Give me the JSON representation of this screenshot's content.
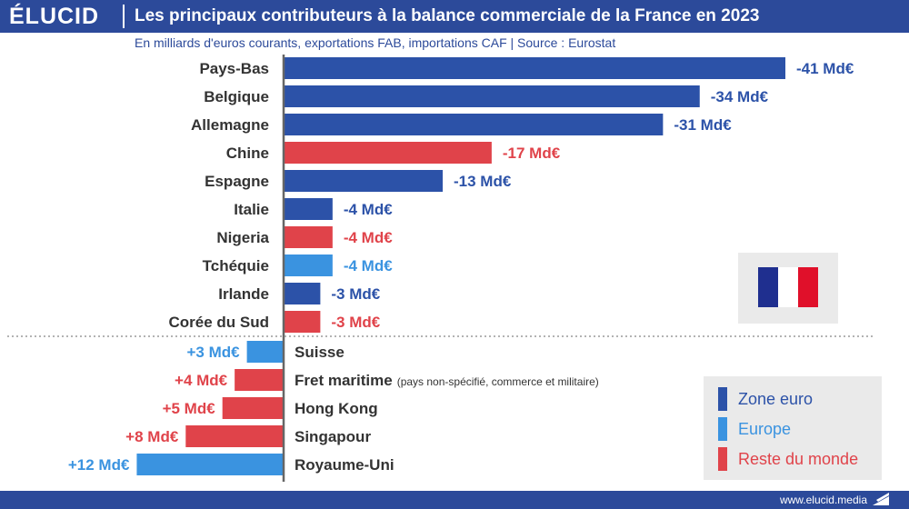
{
  "header": {
    "logo": "ÉLUCID",
    "title": "Les principaux contributeurs à la balance commerciale de la France en 2023",
    "subtitle": "En milliards d'euros courants, exportations FAB, importations CAF  |  Source : Eurostat"
  },
  "footer": {
    "url": "www.elucid.media"
  },
  "colors": {
    "brand": "#2c4a9a",
    "zone_euro": "#2c52a8",
    "europe": "#3a93e0",
    "reste_du_monde": "#e0434a",
    "flag_blue": "#1f2f8f",
    "flag_white": "#ffffff",
    "flag_red": "#e0102a"
  },
  "legend": {
    "items": [
      {
        "label": "Zone euro",
        "group": "zone_euro"
      },
      {
        "label": "Europe",
        "group": "europe"
      },
      {
        "label": "Reste du monde",
        "group": "reste_du_monde"
      }
    ]
  },
  "chart_data": {
    "type": "bar",
    "orientation": "horizontal",
    "unit": "Md€",
    "categories": [
      "Pays-Bas",
      "Belgique",
      "Allemagne",
      "Chine",
      "Espagne",
      "Italie",
      "Nigeria",
      "Tchéquie",
      "Irlande",
      "Corée du Sud",
      "Suisse",
      "Fret maritime",
      "Hong Kong",
      "Singapour",
      "Royaume-Uni"
    ],
    "values": [
      -41,
      -34,
      -31,
      -17,
      -13,
      -4,
      -4,
      -4,
      -3,
      -3,
      3,
      4,
      5,
      8,
      12
    ],
    "groups": [
      "zone_euro",
      "zone_euro",
      "zone_euro",
      "reste_du_monde",
      "zone_euro",
      "zone_euro",
      "reste_du_monde",
      "europe",
      "zone_euro",
      "reste_du_monde",
      "europe",
      "reste_du_monde",
      "reste_du_monde",
      "reste_du_monde",
      "europe"
    ],
    "value_labels": [
      "-41 Md€",
      "-34 Md€",
      "-31 Md€",
      "-17 Md€",
      "-13 Md€",
      "-4 Md€",
      "-4 Md€",
      "-4 Md€",
      "-3 Md€",
      "-3 Md€",
      "+3 Md€",
      "+4 Md€",
      "+5 Md€",
      "+8 Md€",
      "+12 Md€"
    ],
    "category_notes": [
      "",
      "",
      "",
      "",
      "",
      "",
      "",
      "",
      "",
      "",
      "",
      "(pays non-spécifié, commerce et militaire)",
      "",
      "",
      ""
    ],
    "title": "Les principaux contributeurs à la balance commerciale de la France en 2023",
    "xlabel": "",
    "ylabel": "",
    "grid": false,
    "legend_position": "bottom-right"
  }
}
